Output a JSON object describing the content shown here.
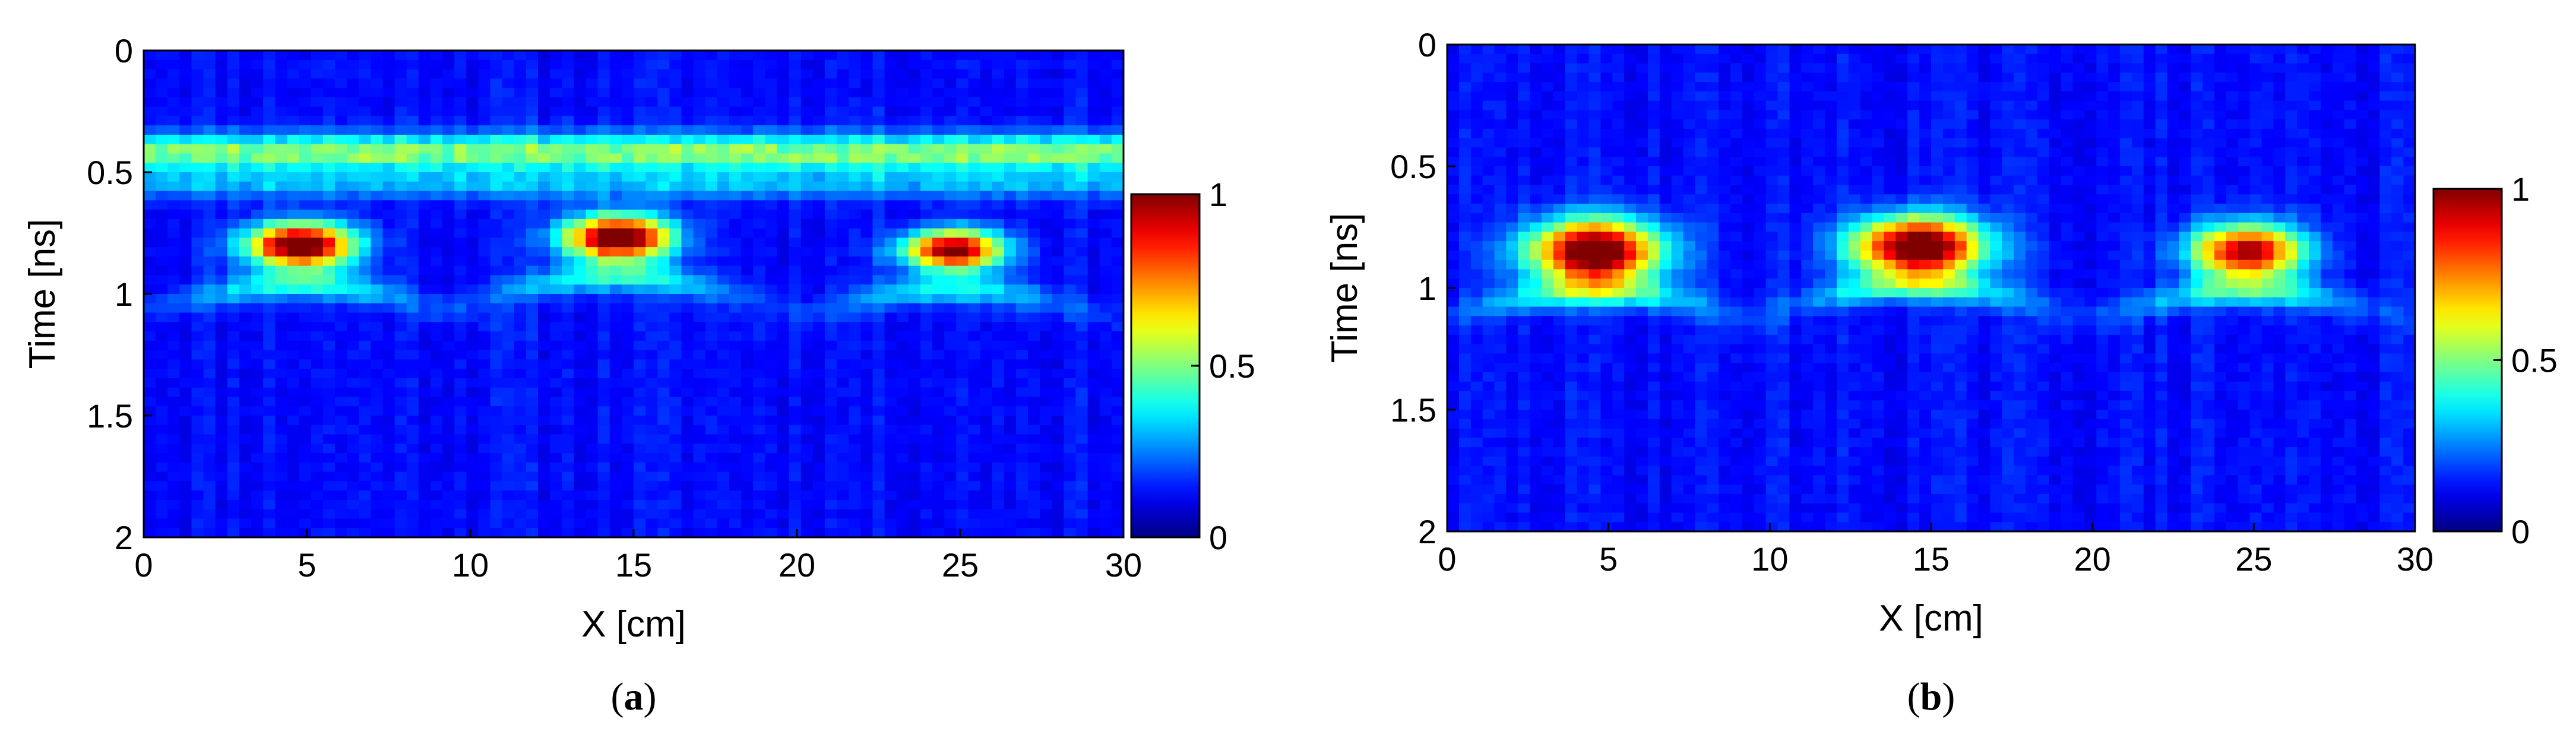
{
  "chart_data": [
    {
      "panel": "a",
      "type": "heatmap",
      "xlabel": "X [cm]",
      "ylabel": "Time [ns]",
      "xlim": [
        0,
        30
      ],
      "ylim": [
        2,
        0
      ],
      "x_ticks": [
        "0",
        "5",
        "10",
        "15",
        "20",
        "25",
        "30"
      ],
      "y_ticks": [
        "0",
        "0.5",
        "1",
        "1.5",
        "2"
      ],
      "colorbar": {
        "colormap": "jet",
        "range": [
          0,
          1
        ],
        "ticks": [
          "0",
          "0.5",
          "1"
        ]
      },
      "grid": false,
      "bands": [
        {
          "t": 0.42,
          "w": 0.075,
          "amp": 0.42,
          "desc": "surface reflection"
        },
        {
          "t": 0.55,
          "w": 0.06,
          "amp": 0.18
        }
      ],
      "blobs": [
        {
          "x": 4.8,
          "t": 0.8,
          "wx": 1.6,
          "wt": 0.09,
          "amp": 1.0,
          "arc": 0.28
        },
        {
          "x": 14.5,
          "t": 0.77,
          "wx": 1.6,
          "wt": 0.09,
          "amp": 1.0,
          "arc": 0.28
        },
        {
          "x": 24.8,
          "t": 0.82,
          "wx": 1.5,
          "wt": 0.08,
          "amp": 0.9,
          "arc": 0.25
        }
      ],
      "caption_label": "a"
    },
    {
      "panel": "b",
      "type": "heatmap",
      "xlabel": "X [cm]",
      "ylabel": "Time [ns]",
      "xlim": [
        0,
        30
      ],
      "ylim": [
        2,
        0
      ],
      "x_ticks": [
        "0",
        "5",
        "10",
        "15",
        "20",
        "25",
        "30"
      ],
      "y_ticks": [
        "0",
        "0.5",
        "1",
        "1.5",
        "2"
      ],
      "colorbar": {
        "colormap": "jet",
        "range": [
          0,
          1
        ],
        "ticks": [
          "0",
          "0.5",
          "1"
        ]
      },
      "grid": false,
      "bands": [],
      "blobs": [
        {
          "x": 4.6,
          "t": 0.85,
          "wx": 2.0,
          "wt": 0.13,
          "amp": 1.0,
          "arc": 0.3
        },
        {
          "x": 14.6,
          "t": 0.83,
          "wx": 2.0,
          "wt": 0.12,
          "amp": 1.0,
          "arc": 0.3
        },
        {
          "x": 24.8,
          "t": 0.85,
          "wx": 1.7,
          "wt": 0.11,
          "amp": 0.85,
          "arc": 0.28
        }
      ],
      "caption_label": "b"
    }
  ]
}
